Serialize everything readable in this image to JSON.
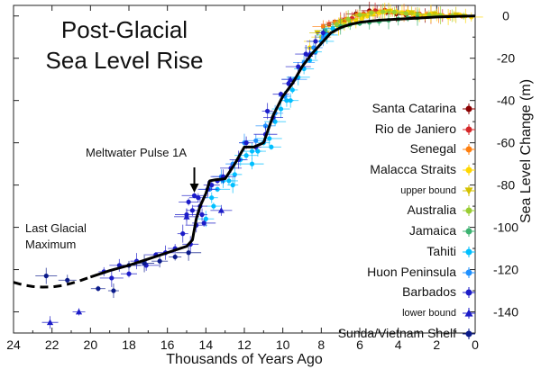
{
  "chart_data": {
    "type": "scatter",
    "title_lines": [
      "Post-Glacial",
      "Sea Level Rise"
    ],
    "xlabel": "Thousands of Years Ago",
    "ylabel": "Sea Level Change (m)",
    "xlim": [
      24,
      0
    ],
    "ylim": [
      -150,
      5
    ],
    "x_ticks": [
      24,
      22,
      20,
      18,
      16,
      14,
      12,
      10,
      8,
      6,
      4,
      2,
      0
    ],
    "y_ticks": [
      0,
      -20,
      -40,
      -60,
      -80,
      -100,
      -120,
      -140
    ],
    "y_tick_labels": [
      "0",
      "-20",
      "-40",
      "-60",
      "-80",
      "-100",
      "-120",
      "-140"
    ],
    "annotations": [
      {
        "text": "Meltwater Pulse 1A",
        "x": 14.3,
        "y": -84
      },
      {
        "text": "Last Glacial",
        "x": 23.7,
        "y": -100
      },
      {
        "text": "Maximum",
        "x": 23.7,
        "y": -108
      }
    ],
    "trend_curve_dashed": {
      "x": [
        24,
        23.5,
        23,
        22.5,
        22,
        21.5,
        21,
        20.5,
        20
      ],
      "y": [
        -126,
        -127.3,
        -128,
        -128.3,
        -128.2,
        -127.6,
        -126.5,
        -125.1,
        -123.5
      ]
    },
    "trend_curve_solid": {
      "x": [
        20,
        19,
        18,
        17,
        16,
        15,
        14.7,
        14.5,
        14.3,
        14.0,
        13.8,
        13.5,
        13.0,
        12.5,
        12.0,
        11.5,
        11.0,
        10.5,
        10.0,
        9.5,
        9.0,
        8.5,
        8.0,
        7.5,
        7.0,
        6.5,
        6.0,
        5.0,
        4.0,
        3.0,
        2.0,
        1.0,
        0.0
      ],
      "y": [
        -123.5,
        -120.5,
        -118,
        -115,
        -112,
        -109,
        -106,
        -96,
        -90,
        -84,
        -78,
        -77.5,
        -77,
        -70,
        -62,
        -62,
        -60,
        -47,
        -38,
        -32,
        -24,
        -18,
        -13,
        -8,
        -5.5,
        -4,
        -3,
        -2,
        -1.5,
        -1,
        -0.5,
        -0.2,
        0
      ]
    },
    "series": [
      {
        "name": "Santa Catarina",
        "color": "#8b0000",
        "marker": "circle",
        "x": [
          7.3,
          6.8,
          6.2,
          5.5,
          5.1,
          4.6,
          4.1,
          3.6,
          3.1,
          2.6
        ],
        "y": [
          -3,
          -2,
          1,
          2.5,
          2,
          1.8,
          1,
          0.5,
          -0.3,
          0.2
        ]
      },
      {
        "name": "Rio de Janiero",
        "color": "#d62728",
        "marker": "circle",
        "x": [
          7.6,
          7.0,
          6.4,
          5.8,
          5.2,
          4.7,
          4.1,
          3.5,
          2.9,
          2.3,
          1.7
        ],
        "y": [
          -4,
          -2.5,
          -1,
          1,
          2.5,
          2.8,
          2,
          1.5,
          1,
          0.5,
          0.2
        ]
      },
      {
        "name": "Senegal",
        "color": "#ff7f0e",
        "marker": "circle",
        "x": [
          7.9,
          7.3,
          6.7,
          6.1,
          5.5,
          4.9,
          4.3,
          3.7,
          3.1,
          2.5,
          1.9,
          1.3,
          0.7
        ],
        "y": [
          -5,
          -3,
          -1.5,
          0.5,
          1.5,
          2,
          1.8,
          1.5,
          1,
          0.8,
          0.5,
          0.3,
          0
        ]
      },
      {
        "name": "Malacca Straits",
        "color": "#ffd700",
        "marker": "circle",
        "x": [
          8.6,
          8.3,
          8.0,
          7.7,
          7.4,
          7.1,
          6.8,
          6.5,
          6.2,
          5.9,
          5.6,
          5.3,
          5.0,
          4.7,
          4.4,
          4.1,
          3.8,
          3.5,
          3.2,
          2.9,
          2.6,
          2.3,
          2.0,
          1.7,
          1.4,
          1.1,
          0.8,
          0.5,
          0.2
        ],
        "y": [
          -15,
          -12,
          -10,
          -8,
          -6,
          -5,
          -4,
          -3,
          -2,
          -1,
          0,
          1,
          1.5,
          2,
          2.5,
          2,
          1.5,
          2,
          1,
          0.5,
          0,
          1,
          0.5,
          0,
          -0.5,
          0,
          0.5,
          0,
          -0.5
        ]
      },
      {
        "name": "upper bound",
        "color": "#d4c200",
        "marker": "triangle-down",
        "x": [
          8.2,
          7.0,
          5.8,
          4.5,
          3.3,
          2.1,
          1.0
        ],
        "y": [
          -8,
          -3,
          0,
          2,
          1.5,
          1,
          0.5
        ]
      },
      {
        "name": "Australia",
        "color": "#9acd32",
        "marker": "circle",
        "x": [
          7.2,
          6.6,
          6.0,
          5.4,
          4.8,
          4.2,
          3.6,
          3.0,
          2.4,
          1.8,
          1.2,
          0.6
        ],
        "y": [
          -4,
          -1.5,
          0.5,
          1.5,
          2,
          1.8,
          1.2,
          0.8,
          0.6,
          0.3,
          0.1,
          0
        ]
      },
      {
        "name": "Jamaica",
        "color": "#3cb371",
        "marker": "circle",
        "x": [
          7.8,
          7.4,
          7.0,
          6.5,
          6.0,
          5.5,
          5.0,
          4.5,
          4.0,
          3.5,
          3.0
        ],
        "y": [
          -7,
          -6,
          -5,
          -4,
          -3.5,
          -3,
          -2.5,
          -2,
          -1.5,
          -1,
          -0.8
        ]
      },
      {
        "name": "Tahiti",
        "color": "#00bfff",
        "marker": "circle",
        "x": [
          14.0,
          13.7,
          13.4,
          13.1,
          12.8,
          12.5,
          12.2,
          11.9,
          11.6,
          11.3,
          11.0,
          10.7,
          10.4,
          10.1,
          9.8,
          9.5,
          9.2,
          8.9,
          8.6,
          8.3,
          8.0,
          7.7,
          7.4,
          13.6,
          12.6,
          11.6,
          10.6,
          9.6
        ],
        "y": [
          -96,
          -86,
          -82,
          -78,
          -78,
          -75,
          -68,
          -66,
          -64,
          -64,
          -60,
          -58,
          -50,
          -44,
          -40,
          -35,
          -29,
          -25,
          -21,
          -17,
          -12,
          -9,
          -6,
          -90,
          -80,
          -70,
          -62,
          -40
        ]
      },
      {
        "name": "Huon Peninsula",
        "color": "#1e90ff",
        "marker": "circle",
        "x": [
          13.8,
          13.2,
          12.6,
          12.0,
          11.4,
          10.9,
          10.4,
          9.9,
          9.4,
          8.9,
          8.4,
          7.9
        ],
        "y": [
          -82,
          -76,
          -70,
          -60,
          -59,
          -52,
          -46,
          -38,
          -30,
          -22,
          -15,
          -10
        ]
      },
      {
        "name": "Barbados",
        "color": "#1c1cc8",
        "marker": "circle",
        "x": [
          19.3,
          18.9,
          18.5,
          18.0,
          17.6,
          17.1,
          16.6,
          16.1,
          15.6,
          15.2,
          15.0,
          14.9,
          14.8,
          14.7,
          14.6,
          14.5,
          14.4,
          14.3,
          14.2,
          14.1,
          13.9,
          13.7,
          13.4,
          13.1,
          12.7,
          12.3,
          11.9,
          11.4,
          10.9,
          10.5,
          10.1,
          9.7,
          9.2,
          8.8,
          8.3,
          7.9,
          10.8
        ],
        "y": [
          -121,
          -124,
          -118,
          -122,
          -116,
          -118,
          -113,
          -112,
          -110,
          -103,
          -94,
          -88,
          -108,
          -92,
          -85,
          -99,
          -86,
          -90,
          -94,
          -98,
          -82,
          -80,
          -78,
          -76,
          -72,
          -68,
          -60,
          -62,
          -56,
          -48,
          -37,
          -32,
          -24,
          -18,
          -12,
          -8,
          -45
        ]
      },
      {
        "name": "lower bound",
        "color": "#1c1cc8",
        "marker": "triangle",
        "x": [
          22.1,
          20.6,
          15.0,
          13.2,
          9.6,
          8.6
        ],
        "y": [
          -145,
          -140,
          -95,
          -92,
          -30,
          -18
        ]
      },
      {
        "name": "Sunda/Vietnam Shelf",
        "color": "#0a1a8a",
        "marker": "circle",
        "x": [
          22.3,
          21.2,
          19.6,
          18.8,
          18.0,
          17.2,
          16.4,
          15.6,
          14.9
        ],
        "y": [
          -123,
          -125,
          -129,
          -130,
          -118,
          -117,
          -116,
          -114,
          -112
        ]
      }
    ]
  },
  "legend": [
    {
      "label": "Santa Catarina",
      "small": false,
      "color": "#8b0000",
      "marker": "circle"
    },
    {
      "label": "Rio de Janiero",
      "small": false,
      "color": "#d62728",
      "marker": "circle"
    },
    {
      "label": "Senegal",
      "small": false,
      "color": "#ff7f0e",
      "marker": "circle"
    },
    {
      "label": "Malacca Straits",
      "small": false,
      "color": "#ffd700",
      "marker": "circle"
    },
    {
      "label": "upper bound",
      "small": true,
      "color": "#d4c200",
      "marker": "triangle-down"
    },
    {
      "label": "Australia",
      "small": false,
      "color": "#9acd32",
      "marker": "circle"
    },
    {
      "label": "Jamaica",
      "small": false,
      "color": "#3cb371",
      "marker": "circle"
    },
    {
      "label": "Tahiti",
      "small": false,
      "color": "#00bfff",
      "marker": "circle"
    },
    {
      "label": "Huon Peninsula",
      "small": false,
      "color": "#1e90ff",
      "marker": "circle"
    },
    {
      "label": "Barbados",
      "small": false,
      "color": "#1c1cc8",
      "marker": "circle"
    },
    {
      "label": "lower bound",
      "small": true,
      "color": "#1c1cc8",
      "marker": "triangle"
    },
    {
      "label": "Sunda/Vietnam Shelf",
      "small": false,
      "color": "#0a1a8a",
      "marker": "circle"
    }
  ]
}
